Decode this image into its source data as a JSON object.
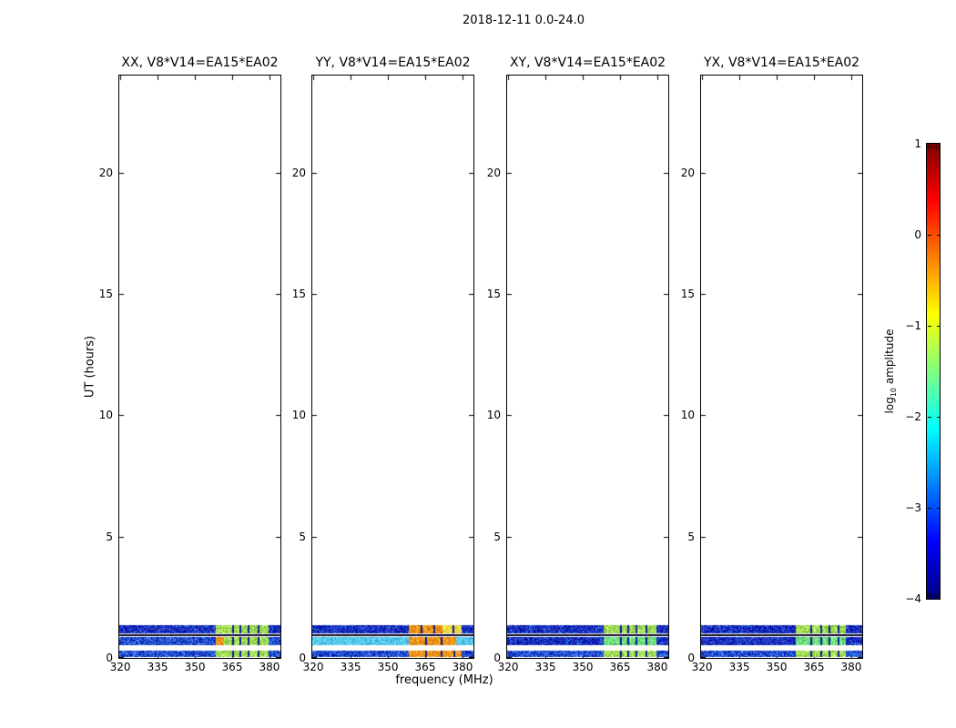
{
  "figure": {
    "background": "#ffffff",
    "text_color": "#000000"
  },
  "chart_data": {
    "type": "heatmap",
    "title": "2018-12-11 0.0-24.0",
    "xlabel": "frequency (MHz)",
    "ylabel": "UT (hours)",
    "xlim": [
      319.6,
      384.4
    ],
    "ylim": [
      0,
      24
    ],
    "xticks": [
      320,
      335,
      350,
      365,
      380
    ],
    "yticks": [
      0,
      5,
      10,
      15,
      20
    ],
    "grid": false,
    "colorbar": {
      "label": "log10 amplitude",
      "label_prefix": "log",
      "label_sub": "10",
      "label_suffix": " amplitude",
      "ticks": [
        "1",
        "0",
        "−1",
        "−2",
        "−3",
        "−4"
      ],
      "tick_values": [
        1,
        0,
        -1,
        -2,
        -3,
        -4
      ],
      "colormap": "jet",
      "colormap_stops": [
        {
          "pos": 0.0,
          "color": "#00007f"
        },
        {
          "pos": 0.125,
          "color": "#0000ff"
        },
        {
          "pos": 0.375,
          "color": "#00ffff"
        },
        {
          "pos": 0.625,
          "color": "#ffff00"
        },
        {
          "pos": 0.875,
          "color": "#ff0000"
        },
        {
          "pos": 1.0,
          "color": "#7f0000"
        }
      ]
    },
    "styles": {
      "navy": {
        "base": [
          15,
          45,
          190
        ],
        "jitter": 70
      },
      "blue": {
        "base": [
          25,
          75,
          205
        ],
        "jitter": 80
      },
      "cyan": {
        "base": [
          85,
          200,
          235
        ],
        "jitter": 45
      },
      "yellowgreen": {
        "base": [
          160,
          225,
          85
        ],
        "jitter": 65
      },
      "green": {
        "base": [
          110,
          222,
          125
        ],
        "jitter": 55
      },
      "orange": {
        "base": [
          242,
          150,
          25
        ],
        "jitter": 50
      },
      "yellow": {
        "base": [
          238,
          218,
          70
        ],
        "jitter": 45
      },
      "darkline": {
        "base": [
          8,
          10,
          40
        ],
        "jitter": 25
      },
      "stripe_color": [
        15,
        25,
        150
      ],
      "speck_warm": [
        230,
        60,
        15
      ]
    },
    "panels": [
      {
        "title": "XX, V8*V14=EA15*EA02",
        "bands": [
          {
            "ut": [
              1.01,
              1.35
            ],
            "specks": 0.06,
            "segments": [
              {
                "f": [
                  319.6,
                  358.5
                ],
                "style": "navy"
              },
              {
                "f": [
                  358.5,
                  379.5
                ],
                "style": "yellowgreen",
                "stripes": [
                  365.0,
                  368.0,
                  371.2,
                  375.3
                ]
              },
              {
                "f": [
                  379.5,
                  384.4
                ],
                "style": "navy"
              }
            ]
          },
          {
            "ut": [
              0.89,
              0.96
            ],
            "segments": [
              {
                "f": [
                  319.6,
                  384.4
                ],
                "style": "darkline"
              }
            ]
          },
          {
            "ut": [
              0.53,
              0.86
            ],
            "segments": [
              {
                "f": [
                  319.6,
                  358.5
                ],
                "style": "blue"
              },
              {
                "f": [
                  358.5,
                  361.8
                ],
                "style": "orange"
              },
              {
                "f": [
                  361.8,
                  379.5
                ],
                "style": "yellowgreen",
                "stripes": [
                  365.0,
                  368.0,
                  371.2,
                  375.3
                ]
              },
              {
                "f": [
                  379.5,
                  384.4
                ],
                "style": "blue"
              }
            ]
          },
          {
            "ut": [
              0.02,
              0.3
            ],
            "segments": [
              {
                "f": [
                  319.6,
                  358.5
                ],
                "style": "blue"
              },
              {
                "f": [
                  358.5,
                  379.5
                ],
                "style": "yellowgreen",
                "stripes": [
                  365.0,
                  368.0,
                  371.2,
                  375.3
                ]
              },
              {
                "f": [
                  379.5,
                  384.4
                ],
                "style": "blue"
              }
            ]
          }
        ]
      },
      {
        "title": "YY, V8*V14=EA15*EA02",
        "bands": [
          {
            "ut": [
              1.01,
              1.35
            ],
            "specks": 0.015,
            "segments": [
              {
                "f": [
                  319.6,
                  358.5
                ],
                "style": "navy"
              },
              {
                "f": [
                  358.5,
                  372.0
                ],
                "style": "orange",
                "stripes": [
                  363.2,
                  368.2
                ]
              },
              {
                "f": [
                  372.0,
                  379.5
                ],
                "style": "yellow",
                "stripes": [
                  375.8
                ]
              },
              {
                "f": [
                  379.5,
                  384.4
                ],
                "style": "navy"
              }
            ]
          },
          {
            "ut": [
              0.89,
              0.96
            ],
            "segments": [
              {
                "f": [
                  319.6,
                  384.4
                ],
                "style": "darkline"
              }
            ]
          },
          {
            "ut": [
              0.53,
              0.86
            ],
            "segments": [
              {
                "f": [
                  319.6,
                  358.5
                ],
                "style": "cyan"
              },
              {
                "f": [
                  358.5,
                  377.5
                ],
                "style": "orange",
                "stripes": [
                  365.0,
                  371.2
                ]
              },
              {
                "f": [
                  377.5,
                  384.4
                ],
                "style": "cyan"
              }
            ]
          },
          {
            "ut": [
              0.02,
              0.3
            ],
            "segments": [
              {
                "f": [
                  319.6,
                  358.5
                ],
                "style": "blue"
              },
              {
                "f": [
                  358.5,
                  379.8
                ],
                "style": "orange",
                "stripes": [
                  365.0,
                  371.2,
                  376.5
                ]
              },
              {
                "f": [
                  379.8,
                  384.4
                ],
                "style": "blue"
              }
            ]
          }
        ]
      },
      {
        "title": "XY, V8*V14=EA15*EA02",
        "bands": [
          {
            "ut": [
              1.01,
              1.35
            ],
            "specks": 0.015,
            "segments": [
              {
                "f": [
                  319.6,
                  358.5
                ],
                "style": "navy"
              },
              {
                "f": [
                  358.5,
                  379.8
                ],
                "style": "yellowgreen",
                "stripes": [
                  365.0,
                  368.0,
                  371.2,
                  375.3
                ]
              },
              {
                "f": [
                  379.8,
                  384.4
                ],
                "style": "navy"
              }
            ]
          },
          {
            "ut": [
              0.89,
              0.96
            ],
            "segments": [
              {
                "f": [
                  319.6,
                  384.4
                ],
                "style": "darkline"
              }
            ]
          },
          {
            "ut": [
              0.53,
              0.86
            ],
            "segments": [
              {
                "f": [
                  319.6,
                  358.5
                ],
                "style": "navy"
              },
              {
                "f": [
                  358.5,
                  379.8
                ],
                "style": "green",
                "stripes": [
                  365.0,
                  368.0,
                  371.2,
                  375.3
                ]
              },
              {
                "f": [
                  379.8,
                  384.4
                ],
                "style": "navy"
              }
            ]
          },
          {
            "ut": [
              0.02,
              0.3
            ],
            "segments": [
              {
                "f": [
                  319.6,
                  358.5
                ],
                "style": "blue"
              },
              {
                "f": [
                  358.5,
                  379.8
                ],
                "style": "yellowgreen",
                "stripes": [
                  365.0,
                  368.0,
                  371.2,
                  375.3
                ]
              },
              {
                "f": [
                  379.8,
                  384.4
                ],
                "style": "blue"
              }
            ]
          }
        ]
      },
      {
        "title": "YX, V8*V14=EA15*EA02",
        "bands": [
          {
            "ut": [
              1.01,
              1.35
            ],
            "specks": 0.015,
            "segments": [
              {
                "f": [
                  319.6,
                  357.8
                ],
                "style": "navy"
              },
              {
                "f": [
                  357.8,
                  377.8
                ],
                "style": "yellowgreen",
                "stripes": [
                  363.5,
                  367.5,
                  371.0,
                  374.5
                ]
              },
              {
                "f": [
                  377.8,
                  384.4
                ],
                "style": "navy"
              }
            ]
          },
          {
            "ut": [
              0.89,
              0.96
            ],
            "segments": [
              {
                "f": [
                  319.6,
                  384.4
                ],
                "style": "darkline"
              }
            ]
          },
          {
            "ut": [
              0.53,
              0.86
            ],
            "segments": [
              {
                "f": [
                  319.6,
                  357.8
                ],
                "style": "navy"
              },
              {
                "f": [
                  357.8,
                  377.8
                ],
                "style": "green",
                "stripes": [
                  363.5,
                  367.5,
                  371.0,
                  374.5
                ]
              },
              {
                "f": [
                  377.8,
                  384.4
                ],
                "style": "navy"
              }
            ]
          },
          {
            "ut": [
              0.02,
              0.3
            ],
            "segments": [
              {
                "f": [
                  319.6,
                  357.8
                ],
                "style": "blue"
              },
              {
                "f": [
                  357.8,
                  377.8
                ],
                "style": "yellowgreen",
                "stripes": [
                  363.5,
                  367.5,
                  371.0,
                  374.5
                ]
              },
              {
                "f": [
                  377.8,
                  384.4
                ],
                "style": "blue"
              }
            ]
          }
        ]
      }
    ]
  }
}
